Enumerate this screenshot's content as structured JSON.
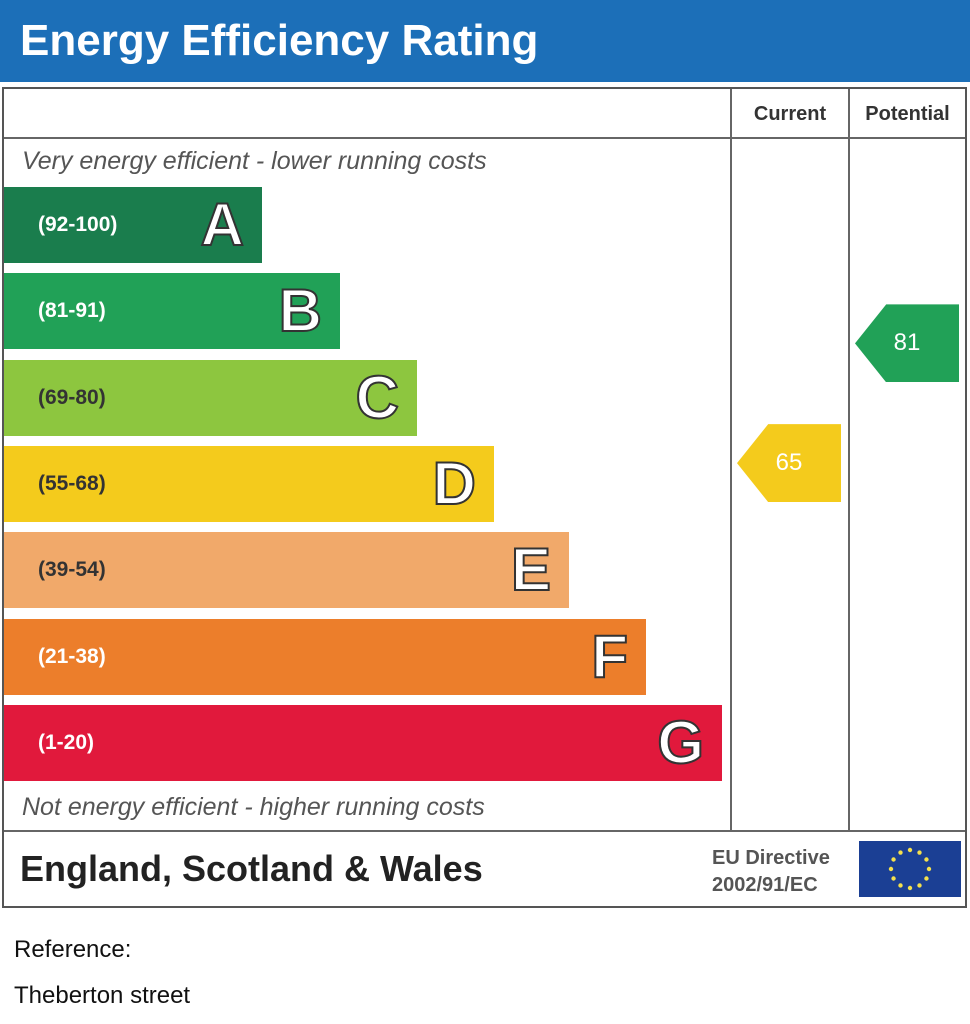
{
  "title": "Energy Efficiency Rating",
  "columns": {
    "current": "Current",
    "potential": "Potential"
  },
  "notes": {
    "top": "Very energy efficient - lower running costs",
    "bottom": "Not energy efficient - higher running costs"
  },
  "footer": {
    "region": "England, Scotland & Wales",
    "directive_line1": "EU Directive",
    "directive_line2": "2002/91/EC"
  },
  "reference": {
    "label": "Reference:",
    "value": "Theberton street"
  },
  "chart_data": {
    "type": "bar",
    "title": "Energy Efficiency Rating",
    "bands": [
      {
        "letter": "A",
        "range": "(92-100)",
        "min": 92,
        "max": 100,
        "color": "#1a7d4d"
      },
      {
        "letter": "B",
        "range": "(81-91)",
        "min": 81,
        "max": 91,
        "color": "#21a157"
      },
      {
        "letter": "C",
        "range": "(69-80)",
        "min": 69,
        "max": 80,
        "color": "#8dc63f"
      },
      {
        "letter": "D",
        "range": "(55-68)",
        "min": 55,
        "max": 68,
        "color": "#f4cb1c"
      },
      {
        "letter": "E",
        "range": "(39-54)",
        "min": 39,
        "max": 54,
        "color": "#f1a96a"
      },
      {
        "letter": "F",
        "range": "(21-38)",
        "min": 21,
        "max": 38,
        "color": "#ec7e2b"
      },
      {
        "letter": "G",
        "range": "(1-20)",
        "min": 1,
        "max": 20,
        "color": "#e1193c"
      }
    ],
    "current": {
      "value": 65,
      "band": "D",
      "label": "65",
      "color": "#f4cb1c"
    },
    "potential": {
      "value": 81,
      "band": "B",
      "label": "81",
      "color": "#21a157"
    }
  }
}
